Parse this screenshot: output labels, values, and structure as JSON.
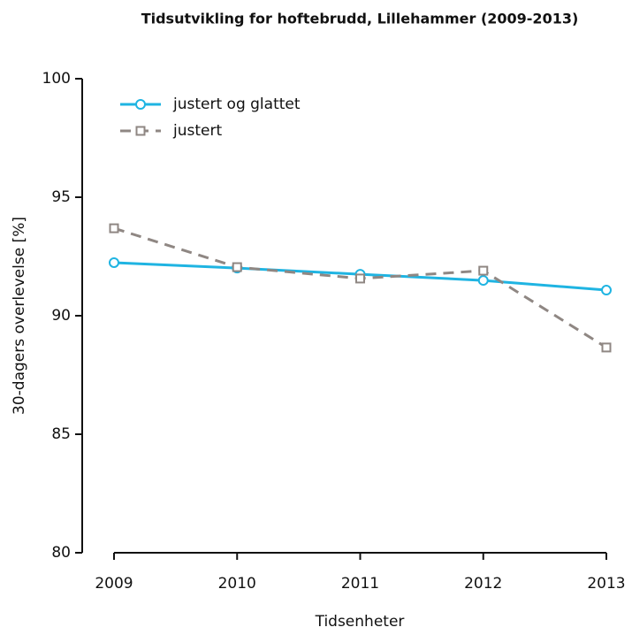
{
  "chart_data": {
    "type": "line",
    "title": "Tidsutvikling for hoftebrudd, Lillehammer (2009-2013)",
    "x_label": "Tidsenheter",
    "y_label": "30-dagers overlevelse [%]",
    "x": [
      2009,
      2010,
      2011,
      2012,
      2013
    ],
    "xlim": [
      2009,
      2013
    ],
    "xticks": [
      2009,
      2010,
      2011,
      2012,
      2013
    ],
    "ylim": [
      80,
      100
    ],
    "yticks": [
      80,
      85,
      90,
      95,
      100
    ],
    "legend": "topleft",
    "series": [
      {
        "name": "justert og glattet",
        "color": "#1fb4e2",
        "marker": "circle",
        "dash": false,
        "values": [
          92.24,
          92.01,
          91.75,
          91.49,
          91.08
        ]
      },
      {
        "name": "justert",
        "color": "#8f8783",
        "marker": "square",
        "dash": true,
        "values": [
          93.69,
          92.05,
          91.57,
          91.9,
          88.66
        ]
      }
    ]
  }
}
